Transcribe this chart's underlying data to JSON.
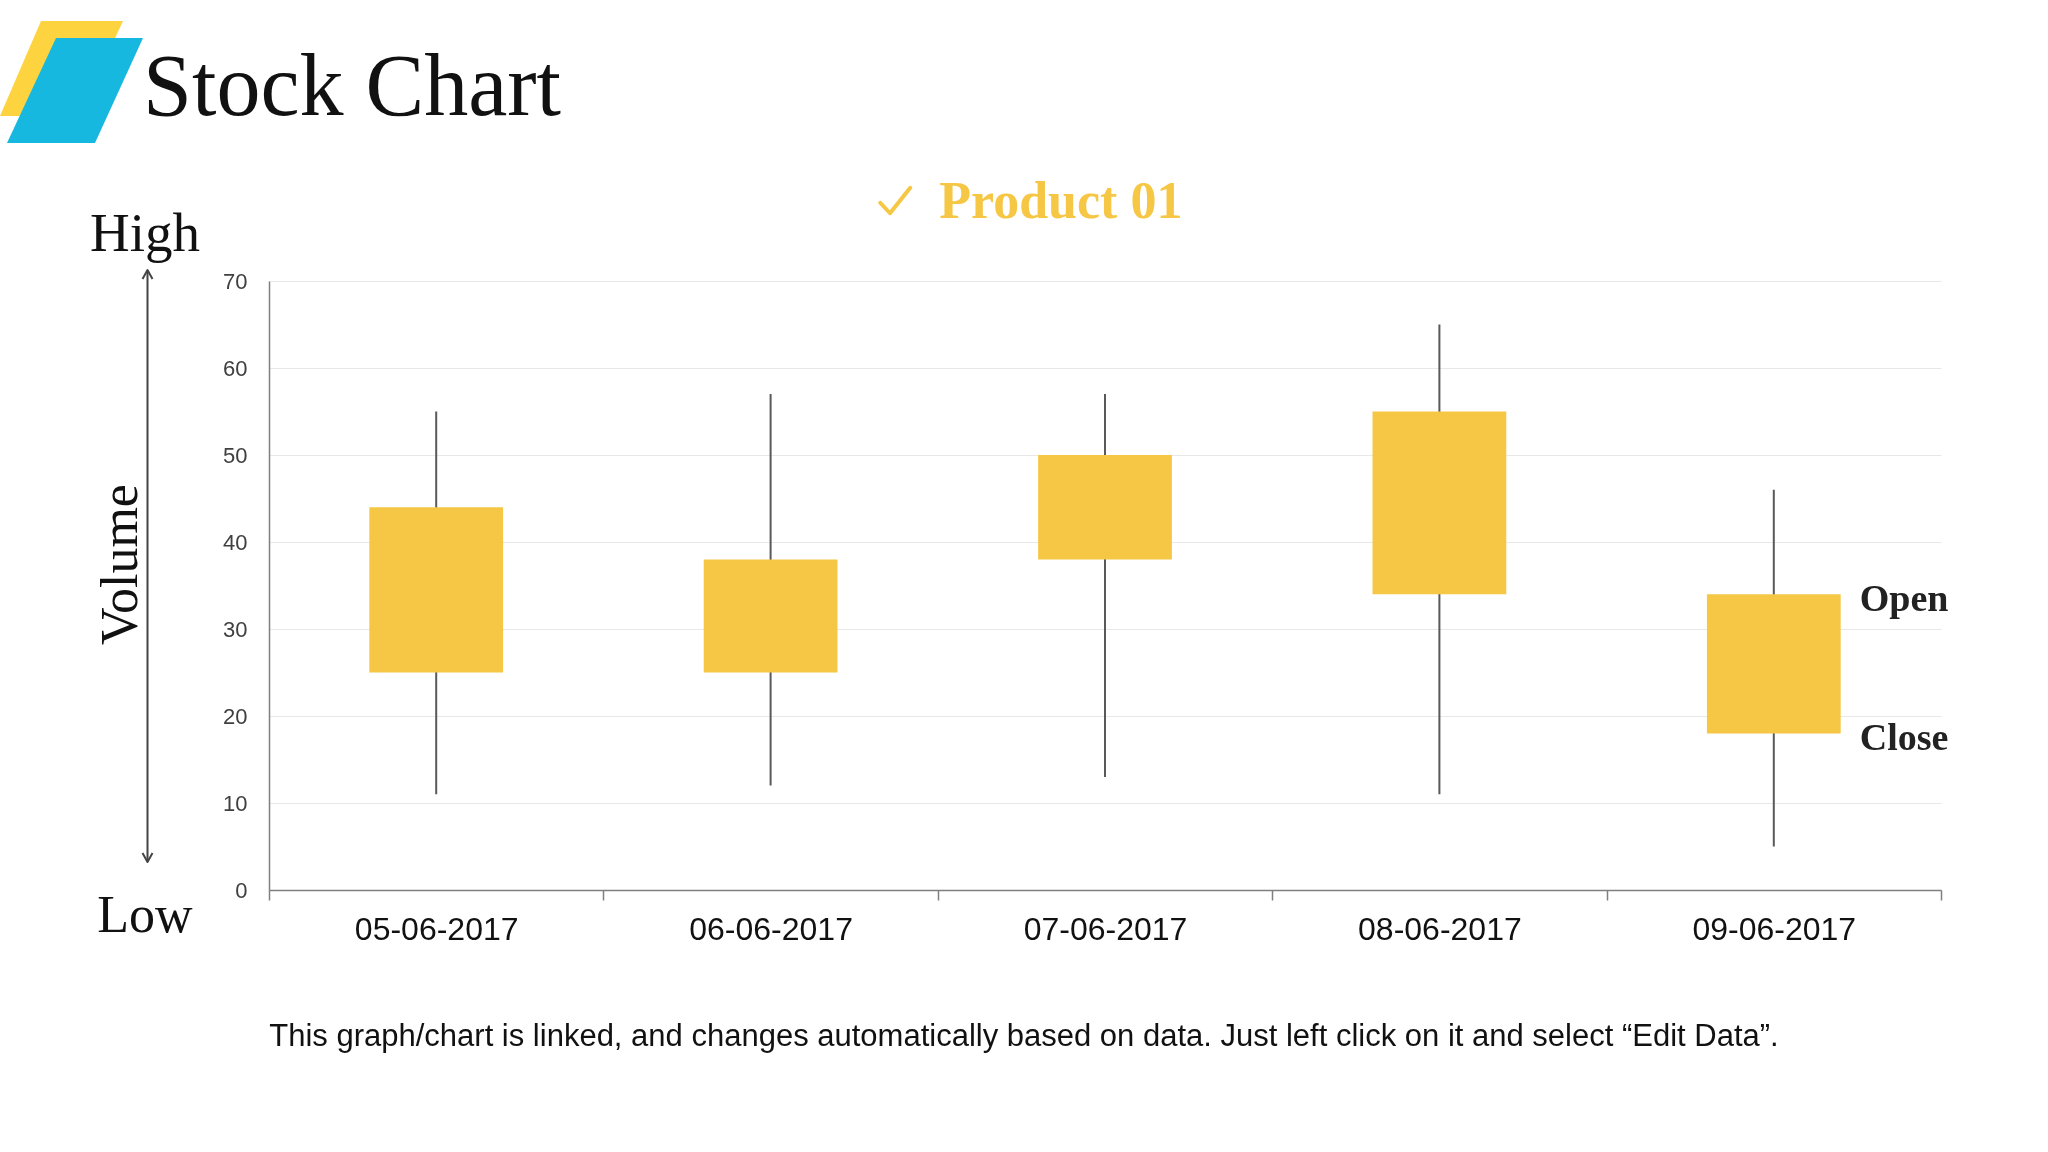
{
  "chart_data": {
    "type": "candlestick",
    "title": "Stock Chart",
    "ylabel": "Volume",
    "categories": [
      "05-06-2017",
      "06-06-2017",
      "07-06-2017",
      "08-06-2017",
      "09-06-2017"
    ],
    "series": [
      {
        "name": "Product 01",
        "color": "#f6c744",
        "ohlc": [
          [
            44,
            55,
            11,
            25
          ],
          [
            38,
            57,
            12,
            25
          ],
          [
            50,
            57,
            13,
            38
          ],
          [
            55,
            65,
            11,
            34
          ],
          [
            34,
            46,
            5,
            18
          ]
        ]
      }
    ],
    "ylim": [
      0,
      70
    ],
    "yticks": [
      0,
      10,
      20,
      30,
      40,
      50,
      60,
      70
    ],
    "grid": "y",
    "legend": "top",
    "annotations": [
      "High",
      "Low",
      {
        "text": "Open",
        "x": "09-06-2017",
        "y": 34
      },
      {
        "text": "Close",
        "x": "09-06-2017",
        "y": 18
      },
      "This graph/chart is linked, and changes automatically based on data. Just left click on it and select “Edit Data”."
    ]
  }
}
